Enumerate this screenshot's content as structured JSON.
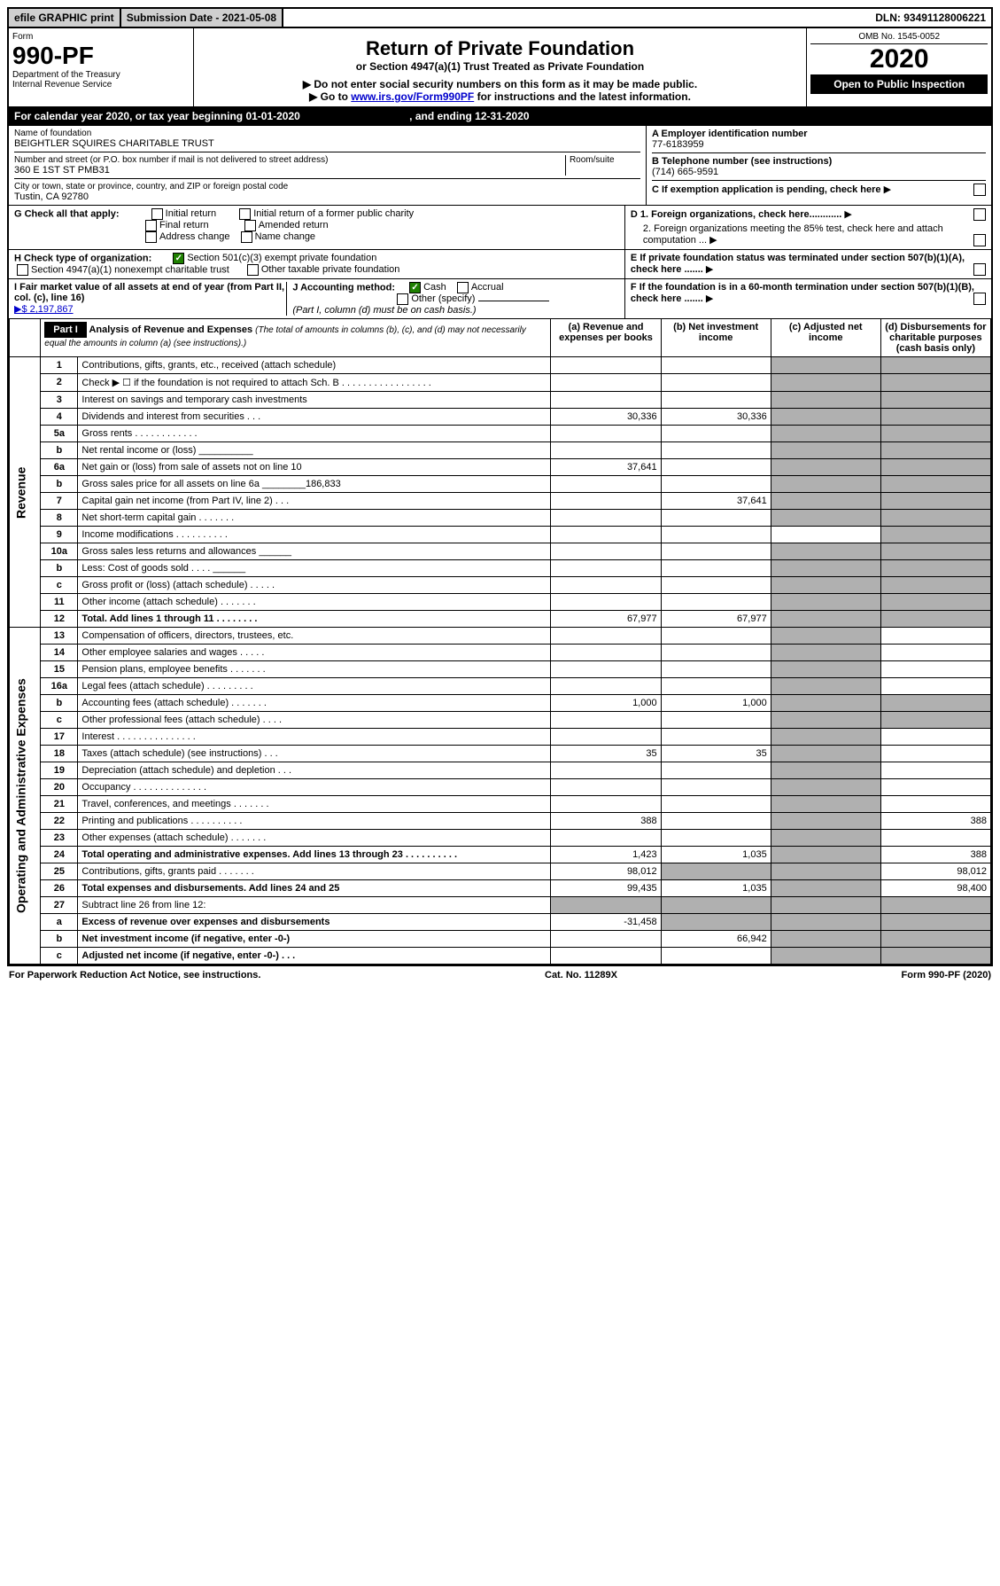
{
  "topbar": {
    "efile": "efile GRAPHIC print",
    "subdate_label": "Submission Date - 2021-05-08",
    "dln": "DLN: 93491128006221"
  },
  "hdr": {
    "form": "Form",
    "formno": "990-PF",
    "dept": "Department of the Treasury",
    "irs": "Internal Revenue Service",
    "title": "Return of Private Foundation",
    "sub1": "or Section 4947(a)(1) Trust Treated as Private Foundation",
    "sub2": "▶ Do not enter social security numbers on this form as it may be made public.",
    "sub3": "▶ Go to ",
    "sublink": "www.irs.gov/Form990PF",
    "sub4": " for instructions and the latest information.",
    "omb": "OMB No. 1545-0052",
    "year": "2020",
    "open": "Open to Public Inspection"
  },
  "calrow": {
    "text": "For calendar year 2020, or tax year beginning 01-01-2020",
    "end": ", and ending 12-31-2020"
  },
  "info": {
    "name_lbl": "Name of foundation",
    "name": "BEIGHTLER SQUIRES CHARITABLE TRUST",
    "addr_lbl": "Number and street (or P.O. box number if mail is not delivered to street address)",
    "room_lbl": "Room/suite",
    "addr": "360 E 1ST ST PMB31",
    "city_lbl": "City or town, state or province, country, and ZIP or foreign postal code",
    "city": "Tustin, CA  92780",
    "ein_lbl": "A Employer identification number",
    "ein": "77-6183959",
    "tel_lbl": "B Telephone number (see instructions)",
    "tel": "(714) 665-9591",
    "c_lbl": "C If exemption application is pending, check here"
  },
  "G": {
    "lbl": "G Check all that apply:",
    "opts": [
      "Initial return",
      "Initial return of a former public charity",
      "Final return",
      "Amended return",
      "Address change",
      "Name change"
    ]
  },
  "D": {
    "d1": "D 1. Foreign organizations, check here............",
    "d2": "2. Foreign organizations meeting the 85% test, check here and attach computation ..."
  },
  "E": "E  If private foundation status was terminated under section 507(b)(1)(A), check here .......",
  "F": "F  If the foundation is in a 60-month termination under section 507(b)(1)(B), check here .......",
  "H": {
    "lbl": "H Check type of organization:",
    "o1": "Section 501(c)(3) exempt private foundation",
    "o2": "Section 4947(a)(1) nonexempt charitable trust",
    "o3": "Other taxable private foundation"
  },
  "I": {
    "lbl": "I Fair market value of all assets at end of year (from Part II, col. (c), line 16)",
    "amt": "▶$  2,197,867"
  },
  "J": {
    "lbl": "J Accounting method:",
    "c": "Cash",
    "a": "Accrual",
    "o": "Other (specify)",
    "note": "(Part I, column (d) must be on cash basis.)"
  },
  "part1": {
    "title": "Part I",
    "head": "Analysis of Revenue and Expenses",
    "note": "(The total of amounts in columns (b), (c), and (d) may not necessarily equal the amounts in column (a) (see instructions).)",
    "cols": {
      "a": "(a)   Revenue and expenses per books",
      "b": "(b)   Net investment income",
      "c": "(c)   Adjusted net income",
      "d": "(d)   Disbursements for charitable purposes (cash basis only)"
    }
  },
  "vtabs": {
    "rev": "Revenue",
    "exp": "Operating and Administrative Expenses"
  },
  "rows": [
    {
      "n": "1",
      "d": "Contributions, gifts, grants, etc., received (attach schedule)"
    },
    {
      "n": "2",
      "d": "Check ▶ ☐ if the foundation is not required to attach Sch. B   .  .  .  .  .  .  .  .  .  .  .  .  .  .  .  .  ."
    },
    {
      "n": "3",
      "d": "Interest on savings and temporary cash investments"
    },
    {
      "n": "4",
      "d": "Dividends and interest from securities    .   .   .",
      "a": "30,336",
      "b": "30,336"
    },
    {
      "n": "5a",
      "d": "Gross rents    .   .   .   .   .   .   .   .   .   .   .   ."
    },
    {
      "n": "b",
      "d": "Net rental income or (loss)  __________"
    },
    {
      "n": "6a",
      "d": "Net gain or (loss) from sale of assets not on line 10",
      "a": "37,641"
    },
    {
      "n": "b",
      "d": "Gross sales price for all assets on line 6a ________186,833"
    },
    {
      "n": "7",
      "d": "Capital gain net income (from Part IV, line 2)    .   .   .",
      "b": "37,641"
    },
    {
      "n": "8",
      "d": "Net short-term capital gain   .   .   .   .   .   .   ."
    },
    {
      "n": "9",
      "d": "Income modifications  .   .   .   .   .   .   .   .   .   ."
    },
    {
      "n": "10a",
      "d": "Gross sales less returns and allowances  ______"
    },
    {
      "n": "b",
      "d": "Less: Cost of goods sold     .   .   .   .  ______"
    },
    {
      "n": "c",
      "d": "Gross profit or (loss) (attach schedule)    .   .   .   .   ."
    },
    {
      "n": "11",
      "d": "Other income (attach schedule)    .   .   .   .   .   .   ."
    },
    {
      "n": "12",
      "d": "Total. Add lines 1 through 11    .   .   .   .   .   .   .   .",
      "a": "67,977",
      "b": "67,977",
      "bold": true
    },
    {
      "n": "13",
      "d": "Compensation of officers, directors, trustees, etc."
    },
    {
      "n": "14",
      "d": "Other employee salaries and wages    .   .   .   .   ."
    },
    {
      "n": "15",
      "d": "Pension plans, employee benefits   .   .   .   .   .   .   ."
    },
    {
      "n": "16a",
      "d": "Legal fees (attach schedule)  .   .   .   .   .   .   .   .   ."
    },
    {
      "n": "b",
      "d": "Accounting fees (attach schedule)   .   .   .   .   .   .   .",
      "a": "1,000",
      "b": "1,000"
    },
    {
      "n": "c",
      "d": "Other professional fees (attach schedule)    .   .   .   ."
    },
    {
      "n": "17",
      "d": "Interest   .   .   .   .   .   .   .   .   .   .   .   .   .   .   ."
    },
    {
      "n": "18",
      "d": "Taxes (attach schedule) (see instructions)    .   .   .",
      "a": "35",
      "b": "35"
    },
    {
      "n": "19",
      "d": "Depreciation (attach schedule) and depletion    .   .   ."
    },
    {
      "n": "20",
      "d": "Occupancy  .   .   .   .   .   .   .   .   .   .   .   .   .   ."
    },
    {
      "n": "21",
      "d": "Travel, conferences, and meetings  .   .   .   .   .   .   ."
    },
    {
      "n": "22",
      "d": "Printing and publications  .   .   .   .   .   .   .   .   .   .",
      "a": "388",
      "dcol": "388"
    },
    {
      "n": "23",
      "d": "Other expenses (attach schedule)   .   .   .   .   .   .   ."
    },
    {
      "n": "24",
      "d": "Total operating and administrative expenses. Add lines 13 through 23   .   .   .   .   .   .   .   .   .   .",
      "a": "1,423",
      "b": "1,035",
      "dcol": "388",
      "bold": true
    },
    {
      "n": "25",
      "d": "Contributions, gifts, grants paid     .   .   .   .   .   .   .",
      "a": "98,012",
      "dcol": "98,012"
    },
    {
      "n": "26",
      "d": "Total expenses and disbursements. Add lines 24 and 25",
      "a": "99,435",
      "b": "1,035",
      "dcol": "98,400",
      "bold": true
    },
    {
      "n": "27",
      "d": "Subtract line 26 from line 12:"
    },
    {
      "n": "a",
      "d": "Excess of revenue over expenses and disbursements",
      "a": "-31,458",
      "bold": true
    },
    {
      "n": "b",
      "d": "Net investment income (if negative, enter -0-)",
      "b": "66,942",
      "bold": true
    },
    {
      "n": "c",
      "d": "Adjusted net income (if negative, enter -0-)   .   .   .",
      "bold": true
    }
  ],
  "shading": {
    "c_shade": [
      "1",
      "2",
      "3",
      "4",
      "5a",
      "b",
      "6a",
      "7",
      "8",
      "10a",
      "11",
      "12",
      "13",
      "14",
      "15",
      "16a",
      "17",
      "18",
      "19",
      "20",
      "21",
      "22",
      "23",
      "24",
      "25",
      "26",
      "27",
      "a",
      "c"
    ],
    "d_shade": [
      "1",
      "2",
      "3",
      "4",
      "5a",
      "6a",
      "7",
      "8",
      "9",
      "10a",
      "11",
      "12",
      "27",
      "a",
      "b",
      "c"
    ],
    "b_shade": [
      "27",
      "a",
      "25"
    ],
    "a_shade": [
      "27"
    ]
  },
  "footer": {
    "pra": "For Paperwork Reduction Act Notice, see instructions.",
    "cat": "Cat. No. 11289X",
    "formr": "Form 990-PF (2020)"
  }
}
